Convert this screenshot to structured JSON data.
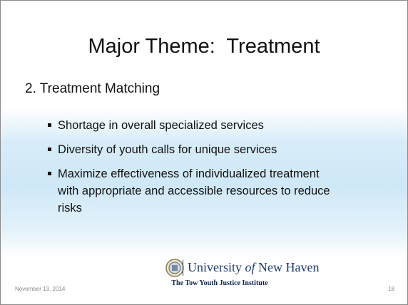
{
  "slide": {
    "title": "Major Theme:  Treatment",
    "subtitle": "2. Treatment Matching",
    "bullets": [
      "Shortage in overall specialized services",
      "Diversity of youth calls for unique services",
      "Maximize effectiveness of individualized treatment with appropriate and accessible resources to reduce risks"
    ],
    "footer": {
      "date": "November 13, 2014",
      "page": "18",
      "logo": {
        "name": [
          "University",
          "of",
          "New Haven"
        ],
        "institute": "The Tow Youth Justice Institute"
      }
    }
  }
}
